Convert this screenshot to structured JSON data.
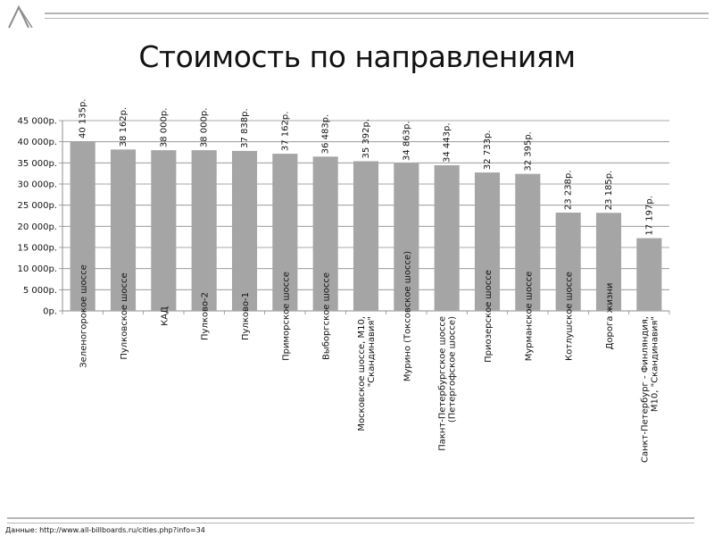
{
  "page": {
    "title": "Стоимость по направлениям",
    "source": "Данные: http://www.all-billboards.ru/cities.php?info=34"
  },
  "chart_data": {
    "type": "bar",
    "title": "Стоимость по направлениям",
    "xlabel": "",
    "ylabel": "",
    "ylim": [
      0,
      45000
    ],
    "yticks": [
      0,
      5000,
      10000,
      15000,
      20000,
      25000,
      30000,
      35000,
      40000,
      45000
    ],
    "ytick_labels": [
      "0р.",
      "5 000р.",
      "10 000р.",
      "15 000р.",
      "20 000р.",
      "25 000р.",
      "30 000р.",
      "35 000р.",
      "40 000р.",
      "45 000р."
    ],
    "grid": true,
    "bar_color": "#a5a5a5",
    "categories": [
      "Зеленогорокое шоссе",
      "Пулковское шоссе",
      "КАД",
      "Пулково-2",
      "Пулково-1",
      "Приморское шоссе",
      "Выборгское шоссе",
      "Московское шоссе, М10, \"Скандинавия\"",
      "Мурино (Токсовское шоссе)",
      "Пакнт-Петербургское шоссе (Петергофское шоссе)",
      "Приозерское шоссе",
      "Мурманское шоссе",
      "Котлушское шоссе",
      "Дорога жизни",
      "Санкт-Петербург - Финляндия, М10, \"Скандинавия\""
    ],
    "values": [
      40135,
      38162,
      38000,
      38000,
      37838,
      37162,
      36483,
      35392,
      34863,
      34443,
      32733,
      32395,
      23238,
      23185,
      17197
    ],
    "data_labels": [
      "40 135р.",
      "38 162р.",
      "38 000р.",
      "38 000р.",
      "37 838р.",
      "37 162р.",
      "36 483р.",
      "35 392р.",
      "34 863р.",
      "34 443р.",
      "32 733р.",
      "32 395р.",
      "23 238р.",
      "23 185р.",
      "17 197р."
    ]
  }
}
